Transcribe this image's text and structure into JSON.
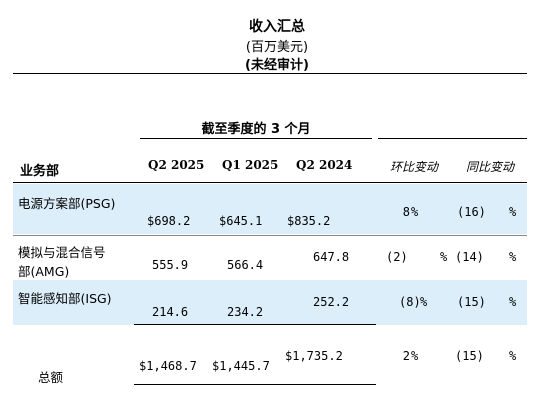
{
  "title": "收入汇总",
  "subtitle": "(百万美元)",
  "unaudited": "(未经审计)",
  "period_header": "截至季度的 3 个月",
  "segment_header": "业务部",
  "columns": {
    "q2_2025": "Q2 2025",
    "q1_2025": "Q1 2025",
    "q2_2024": "Q2 2024",
    "qoq": "环比变动",
    "yoy": "同比变动"
  },
  "rows": [
    {
      "label": "电源方案部(PSG)",
      "q2_2025": "$698.2",
      "q1_2025": "$645.1",
      "q2_2024": "$835.2",
      "qoq": "8",
      "qoq_pct": "%",
      "yoy": "(16)",
      "yoy_pct": "%"
    },
    {
      "label_line1": "模拟与混合信号",
      "label_line2": "部(AMG)",
      "q2_2025": "555.9",
      "q1_2025": "566.4",
      "q2_2024": "647.8",
      "qoq": "(2)",
      "qoq_pct": "%",
      "yoy": "(14)",
      "yoy_pct": "%"
    },
    {
      "label": "智能感知部(ISG)",
      "q2_2025": "214.6",
      "q1_2025": "234.2",
      "q2_2024": "252.2",
      "qoq": "(8)",
      "qoq_pct": "%",
      "yoy": "(15)",
      "yoy_pct": "%"
    }
  ],
  "total": {
    "label": "总额",
    "q2_2025": "$1,468.7",
    "q1_2025": "$1,445.7",
    "q2_2024": "$1,735.2",
    "qoq": "2",
    "qoq_pct": "%",
    "yoy": "(15)",
    "yoy_pct": "%"
  },
  "colors": {
    "band": "#dbeefa",
    "text": "#000000"
  }
}
